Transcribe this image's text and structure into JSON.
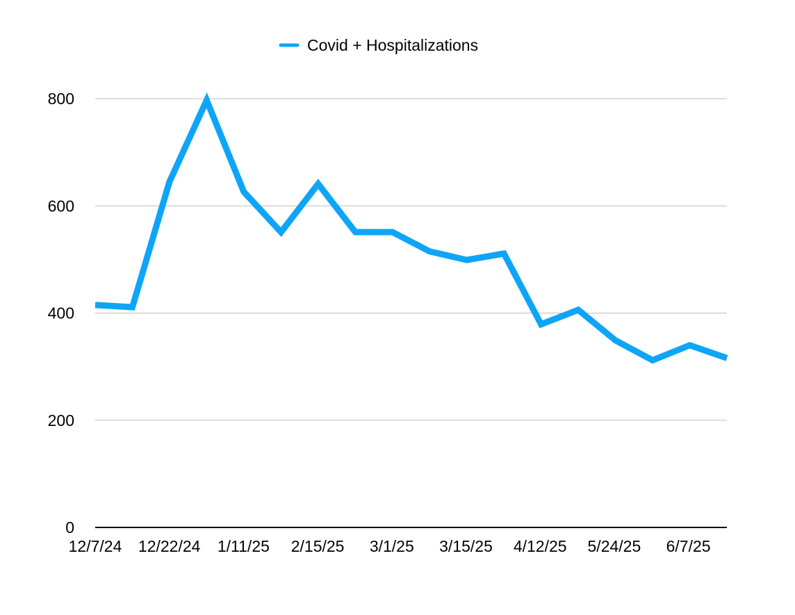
{
  "chart_data": {
    "type": "line",
    "x_tick_labels": [
      "12/7/24",
      "12/22/24",
      "1/11/25",
      "2/15/25",
      "3/1/25",
      "3/15/25",
      "4/12/25",
      "5/24/25",
      "6/7/25"
    ],
    "series": [
      {
        "name": "Covid + Hospitalizations",
        "values": [
          415,
          411,
          645,
          797,
          626,
          551,
          641,
          551,
          551,
          515,
          499,
          511,
          379,
          406,
          349,
          312,
          340,
          316
        ]
      }
    ],
    "ylim": [
      0,
      800
    ],
    "y_ticks": [
      0,
      200,
      400,
      600,
      800
    ],
    "grid": true,
    "legend_position": "top"
  },
  "colors": {
    "series": "#0ea5f8",
    "grid": "#bdbdbd",
    "axis": "#000000"
  }
}
